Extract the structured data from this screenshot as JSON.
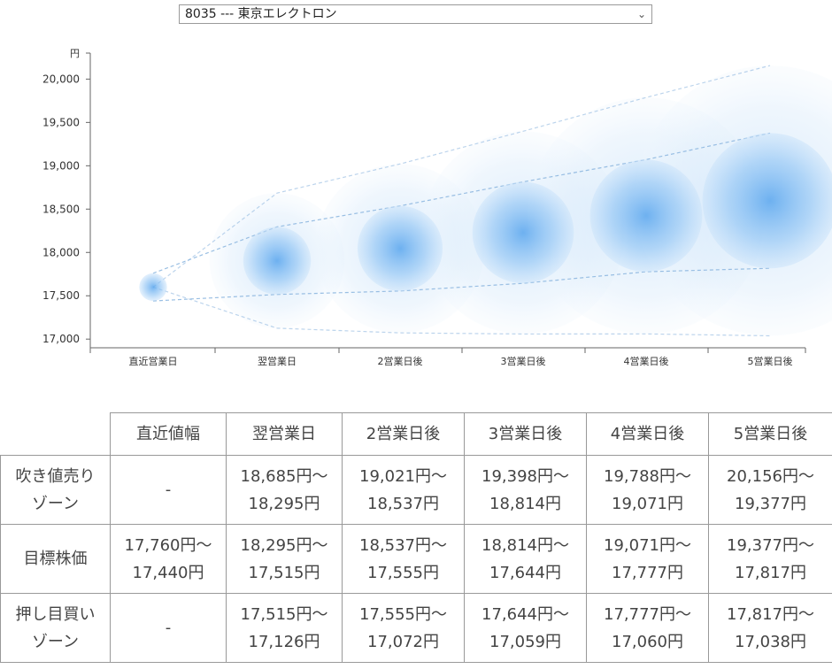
{
  "selector": {
    "value": "8035 --- 東京エレクトロン",
    "chevron_icon": "chevron-down-icon"
  },
  "chart_data": {
    "type": "bubble-forecast",
    "ylabel": "円",
    "ylim": [
      16900,
      20300
    ],
    "yticks": [
      17000,
      17500,
      18000,
      18500,
      19000,
      19500,
      20000
    ],
    "ytick_labels": [
      "17,000",
      "17,500",
      "18,000",
      "18,500",
      "19,000",
      "19,500",
      "20,000"
    ],
    "categories": [
      "直近営業日",
      "翌営業日",
      "2営業日後",
      "3営業日後",
      "4営業日後",
      "5営業日後"
    ],
    "target_center": [
      17600,
      17905,
      18046,
      18229,
      18424,
      18597
    ],
    "target_high": [
      17760,
      18295,
      18537,
      18814,
      19071,
      19377
    ],
    "target_low": [
      17440,
      17515,
      17555,
      17644,
      17777,
      17817
    ],
    "outer_high": [
      null,
      18685,
      19021,
      19398,
      19788,
      20156
    ],
    "outer_low": [
      null,
      17126,
      17072,
      17059,
      17060,
      17038
    ],
    "bubble_color": "#4a9be8",
    "line_color": "#8fb8e0",
    "grid": false
  },
  "table": {
    "headers": [
      "",
      "直近値幅",
      "翌営業日",
      "2営業日後",
      "3営業日後",
      "4営業日後",
      "5営業日後"
    ],
    "rows": [
      {
        "label": [
          "吹き値売り",
          "ゾーン"
        ],
        "cells": [
          [
            "-"
          ],
          [
            "18,685円〜",
            "18,295円"
          ],
          [
            "19,021円〜",
            "18,537円"
          ],
          [
            "19,398円〜",
            "18,814円"
          ],
          [
            "19,788円〜",
            "19,071円"
          ],
          [
            "20,156円〜",
            "19,377円"
          ]
        ]
      },
      {
        "label": [
          "目標株価"
        ],
        "cells": [
          [
            "17,760円〜",
            "17,440円"
          ],
          [
            "18,295円〜",
            "17,515円"
          ],
          [
            "18,537円〜",
            "17,555円"
          ],
          [
            "18,814円〜",
            "17,644円"
          ],
          [
            "19,071円〜",
            "17,777円"
          ],
          [
            "19,377円〜",
            "17,817円"
          ]
        ]
      },
      {
        "label": [
          "押し目買い",
          "ゾーン"
        ],
        "cells": [
          [
            "-"
          ],
          [
            "17,515円〜",
            "17,126円"
          ],
          [
            "17,555円〜",
            "17,072円"
          ],
          [
            "17,644円〜",
            "17,059円"
          ],
          [
            "17,777円〜",
            "17,060円"
          ],
          [
            "17,817円〜",
            "17,038円"
          ]
        ]
      }
    ]
  }
}
